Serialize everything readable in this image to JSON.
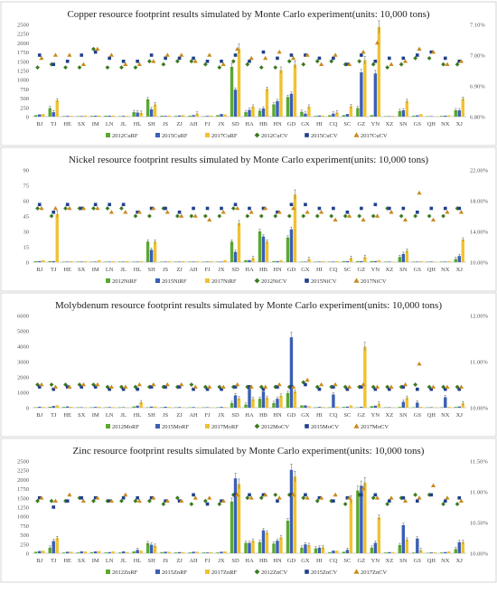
{
  "colors": {
    "2012RF": "#5aa832",
    "2015RF": "#3a5fb3",
    "2017RF": "#f0c231",
    "2012CV": "#3c7a1e",
    "2015CV": "#1f3f8a",
    "2017CV": "#c98a1e"
  },
  "provinces": [
    "BJ",
    "TJ",
    "HE",
    "SX",
    "IM",
    "LN",
    "JL",
    "HL",
    "SH",
    "JS",
    "ZJ",
    "AH",
    "FJ",
    "JX",
    "SD",
    "HA",
    "HB",
    "HN",
    "GD",
    "GX",
    "HI",
    "CQ",
    "SC",
    "GZ",
    "YN",
    "XZ",
    "SN",
    "GS",
    "QH",
    "NX",
    "XJ"
  ],
  "chart_data": [
    {
      "type": "bar",
      "title": "Copper resource footprint results simulated by Monte Carlo experiment(units: 10,000 tons)",
      "ylim": [
        0,
        2500
      ],
      "yticks": [
        0,
        250,
        500,
        750,
        1000,
        1250,
        1500,
        1750,
        2000,
        2250,
        2500
      ],
      "ylim_right": [
        6.8,
        7.1
      ],
      "yticks_right": [
        "6.80%",
        "6.90%",
        "7.00%",
        "7.10%"
      ],
      "legend": [
        "2012CuRF",
        "2015CuRF",
        "2017CuRF",
        "2012CuCV",
        "2015CuCV",
        "2017CuCV"
      ],
      "series": [
        {
          "name": "2012CuRF",
          "values": [
            40,
            230,
            15,
            10,
            20,
            25,
            10,
            120,
            470,
            25,
            20,
            25,
            10,
            40,
            1350,
            120,
            160,
            330,
            530,
            130,
            20,
            40,
            40,
            230,
            40,
            10,
            150,
            25,
            5,
            20,
            170
          ]
        },
        {
          "name": "2015CuRF",
          "values": [
            60,
            120,
            20,
            15,
            25,
            25,
            20,
            110,
            200,
            20,
            30,
            40,
            20,
            70,
            730,
            180,
            220,
            420,
            620,
            80,
            30,
            80,
            70,
            1200,
            1170,
            10,
            170,
            35,
            10,
            25,
            170
          ]
        },
        {
          "name": "2017CuRF",
          "values": [
            70,
            440,
            20,
            30,
            30,
            30,
            20,
            100,
            330,
            30,
            40,
            80,
            30,
            60,
            1840,
            270,
            750,
            1260,
            1410,
            270,
            30,
            110,
            280,
            1530,
            2430,
            20,
            420,
            70,
            10,
            35,
            480
          ]
        },
        {
          "name": "2012CuCV",
          "values": [
            6.96,
            6.97,
            6.96,
            6.96,
            7.02,
            6.96,
            6.96,
            6.96,
            6.98,
            6.97,
            6.98,
            6.98,
            6.97,
            6.96,
            6.98,
            6.97,
            6.96,
            6.96,
            6.98,
            6.97,
            6.98,
            6.98,
            6.97,
            6.98,
            6.97,
            6.96,
            6.97,
            6.99,
            6.99,
            6.97,
            6.97
          ]
        },
        {
          "name": "2015CuCV",
          "values": [
            7.0,
            6.97,
            6.98,
            7.0,
            7.01,
            6.99,
            6.98,
            6.98,
            7.0,
            6.99,
            6.99,
            6.99,
            6.98,
            6.98,
            7.0,
            6.98,
            7.01,
            6.99,
            7.0,
            7.0,
            6.99,
            6.99,
            6.97,
            7.0,
            6.98,
            6.99,
            6.99,
            7.0,
            7.01,
            6.99,
            6.98
          ]
        },
        {
          "name": "2017CuCV",
          "values": [
            6.99,
            7.0,
            7.0,
            6.97,
            7.02,
            7.0,
            6.97,
            6.97,
            6.98,
            7.0,
            7.0,
            6.98,
            7.0,
            6.97,
            7.02,
            6.99,
            6.99,
            7.01,
            6.99,
            7.0,
            6.97,
            7.0,
            6.97,
            7.01,
            7.04,
            6.97,
            6.98,
            7.02,
            7.01,
            6.97,
            6.98
          ]
        }
      ]
    },
    {
      "type": "bar",
      "title": "Nickel resource footprint results simulated by Monte Carlo experiment(units: 10,000 tons)",
      "ylim": [
        0,
        90
      ],
      "yticks": [
        0,
        15,
        30,
        45,
        60,
        75,
        90
      ],
      "ylim_right": [
        10,
        22
      ],
      "yticks_right": [
        "10.00%",
        "14.00%",
        "18.00%",
        "22.00%"
      ],
      "legend": [
        "2012NiRF",
        "2015NiRF",
        "2017NiRF",
        "2012NiCV",
        "2015NiCV",
        "2017NiCV"
      ],
      "series": [
        {
          "name": "2012NiRF",
          "values": [
            1,
            1,
            0.5,
            0.5,
            0.5,
            0.5,
            0.5,
            0.5,
            20,
            0.5,
            0.5,
            0.5,
            0.5,
            0.5,
            20,
            2,
            30,
            1,
            24,
            0.5,
            0.5,
            0.5,
            1,
            1,
            1,
            0.5,
            5,
            0.5,
            0.5,
            0.5,
            3
          ]
        },
        {
          "name": "2015NiRF",
          "values": [
            1,
            1,
            0.5,
            0.5,
            0.5,
            0.5,
            0.5,
            0.5,
            12,
            0.5,
            0.5,
            0.5,
            0.5,
            0.5,
            10,
            2,
            25,
            1,
            32,
            0.5,
            0.5,
            0.5,
            1,
            1,
            1,
            0.5,
            8,
            0.5,
            0.5,
            0.5,
            6
          ]
        },
        {
          "name": "2017NiRF",
          "values": [
            2,
            47,
            1,
            1,
            2,
            1,
            1,
            1,
            20,
            1,
            1,
            1,
            1,
            2,
            38,
            4,
            20,
            2,
            66,
            3,
            1,
            1,
            4,
            5,
            2,
            0.5,
            11,
            1,
            0.5,
            1,
            22
          ]
        },
        {
          "name": "2012NiCV",
          "values": [
            17,
            16,
            17,
            17,
            17,
            17,
            17,
            16,
            16,
            17,
            16,
            16,
            16,
            16,
            17,
            16,
            16,
            16,
            16,
            16,
            16,
            16,
            16,
            16,
            16,
            17,
            16,
            16,
            16,
            16,
            17
          ]
        },
        {
          "name": "2015NiCV",
          "values": [
            17.5,
            16.5,
            17.5,
            17,
            17.5,
            17.5,
            17.5,
            16.5,
            17,
            17,
            16.5,
            17,
            17,
            17,
            17.5,
            17,
            17,
            16.5,
            17.5,
            17.5,
            17,
            17,
            16.5,
            17,
            17.5,
            17,
            17,
            16.5,
            17,
            17,
            17
          ]
        },
        {
          "name": "2017NiCV",
          "values": [
            17,
            17,
            17,
            17,
            17,
            16.5,
            16.5,
            16.5,
            17,
            16.5,
            16,
            16,
            15.5,
            16.5,
            17,
            16.5,
            17,
            16.5,
            17,
            16.5,
            16.5,
            15.5,
            16,
            15.5,
            16,
            16.5,
            15.5,
            19,
            15.5,
            16.5,
            16.5
          ]
        }
      ]
    },
    {
      "type": "bar",
      "title": "Molybdenum resource footprint results simulated by Monte Carlo experiment(units: 10,000 tons)",
      "ylim": [
        0,
        6000
      ],
      "yticks": [
        0,
        1000,
        2000,
        3000,
        4000,
        5000,
        6000
      ],
      "ylim_right": [
        10,
        12
      ],
      "yticks_right": [
        "10.00%",
        "11.00%",
        "12.00%"
      ],
      "legend": [
        "2012MoRF",
        "2015MoRF",
        "2017MoRF",
        "2012MoCV",
        "2015MoCV",
        "2017MoCV"
      ],
      "series": [
        {
          "name": "2012MoRF",
          "values": [
            30,
            60,
            50,
            20,
            30,
            20,
            10,
            80,
            30,
            30,
            20,
            20,
            10,
            20,
            300,
            200,
            580,
            300,
            950,
            150,
            30,
            20,
            50,
            30,
            100,
            10,
            50,
            10,
            10,
            10,
            50
          ]
        },
        {
          "name": "2015MoRF",
          "values": [
            60,
            110,
            80,
            30,
            50,
            40,
            30,
            130,
            70,
            60,
            40,
            40,
            20,
            50,
            800,
            1340,
            1050,
            580,
            4580,
            150,
            50,
            860,
            70,
            60,
            130,
            20,
            380,
            330,
            10,
            680,
            80
          ]
        },
        {
          "name": "2017MoRF",
          "values": [
            50,
            160,
            60,
            30,
            60,
            40,
            30,
            350,
            80,
            50,
            30,
            30,
            20,
            40,
            600,
            560,
            640,
            780,
            1050,
            100,
            50,
            80,
            150,
            3970,
            250,
            30,
            640,
            60,
            10,
            60,
            280
          ]
        },
        {
          "name": "2012MoCV",
          "values": [
            10.5,
            10.5,
            10.5,
            10.5,
            10.5,
            10.45,
            10.45,
            10.45,
            10.45,
            10.45,
            10.45,
            10.5,
            10.45,
            10.45,
            10.45,
            10.45,
            10.45,
            10.45,
            10.45,
            10.55,
            10.45,
            10.45,
            10.45,
            10.45,
            10.45,
            10.45,
            10.45,
            10.5,
            10.45,
            10.45,
            10.45
          ]
        },
        {
          "name": "2015MoCV",
          "values": [
            10.45,
            10.4,
            10.45,
            10.45,
            10.45,
            10.4,
            10.4,
            10.4,
            10.45,
            10.45,
            10.45,
            10.4,
            10.4,
            10.4,
            10.45,
            10.45,
            10.4,
            10.45,
            10.45,
            10.5,
            10.4,
            10.45,
            10.4,
            10.45,
            10.4,
            10.4,
            10.45,
            10.4,
            10.4,
            10.4,
            10.4
          ]
        },
        {
          "name": "2017MoCV",
          "values": [
            10.5,
            10.45,
            10.45,
            10.5,
            10.5,
            10.45,
            10.45,
            10.5,
            10.5,
            10.5,
            10.5,
            10.45,
            10.45,
            10.45,
            10.5,
            10.45,
            10.45,
            10.5,
            10.45,
            10.6,
            10.5,
            10.5,
            10.45,
            10.5,
            10.45,
            10.45,
            10.5,
            10.95,
            10.45,
            10.45,
            10.45
          ]
        }
      ]
    },
    {
      "type": "bar",
      "title": "Zinc resource footprint results simulated by Monte Carlo experiment(units: 10,000 tons)",
      "ylim": [
        0,
        2500
      ],
      "yticks": [
        0,
        250,
        500,
        750,
        1000,
        1250,
        1500,
        1750,
        2000,
        2250,
        2500
      ],
      "ylim_right": [
        10,
        11.5
      ],
      "yticks_right": [
        "10.00%",
        "10.50%",
        "11.00%",
        "11.50%"
      ],
      "legend": [
        "2012ZnRF",
        "2015ZnRF",
        "2017ZnRF",
        "2012ZnCV",
        "2015ZnCV",
        "2017ZnCV"
      ],
      "series": [
        {
          "name": "2012ZnRF",
          "values": [
            40,
            150,
            20,
            20,
            30,
            20,
            20,
            50,
            270,
            30,
            20,
            20,
            20,
            20,
            1400,
            280,
            300,
            260,
            880,
            150,
            130,
            30,
            40,
            1700,
            150,
            20,
            220,
            20,
            10,
            20,
            110
          ]
        },
        {
          "name": "2015ZnRF",
          "values": [
            60,
            330,
            40,
            50,
            50,
            30,
            50,
            90,
            230,
            40,
            30,
            40,
            20,
            40,
            2030,
            280,
            620,
            340,
            2260,
            240,
            150,
            70,
            90,
            1830,
            280,
            30,
            760,
            400,
            20,
            30,
            300
          ]
        },
        {
          "name": "2017ZnRF",
          "values": [
            70,
            410,
            40,
            50,
            60,
            50,
            30,
            70,
            200,
            40,
            30,
            40,
            30,
            50,
            1880,
            340,
            560,
            430,
            2080,
            220,
            160,
            70,
            1460,
            1920,
            970,
            30,
            370,
            80,
            30,
            50,
            300
          ]
        },
        {
          "name": "2012ZnCV",
          "values": [
            10.85,
            10.85,
            10.85,
            10.9,
            10.85,
            10.85,
            10.85,
            10.85,
            10.85,
            10.8,
            10.9,
            10.8,
            10.85,
            10.8,
            10.95,
            10.9,
            10.9,
            10.95,
            10.95,
            10.9,
            10.85,
            10.85,
            10.8,
            10.95,
            10.9,
            10.8,
            10.9,
            10.95,
            10.95,
            10.8,
            10.8
          ]
        },
        {
          "name": "2015ZnCV",
          "values": [
            10.9,
            10.75,
            10.85,
            10.9,
            10.9,
            10.85,
            10.9,
            10.9,
            10.9,
            10.85,
            10.85,
            10.95,
            10.8,
            10.85,
            10.95,
            10.95,
            10.95,
            10.85,
            10.95,
            10.95,
            10.9,
            10.85,
            10.9,
            10.95,
            10.95,
            10.85,
            10.9,
            10.85,
            10.95,
            10.85,
            10.9
          ]
        },
        {
          "name": "2017ZnCV",
          "values": [
            10.9,
            10.85,
            10.95,
            10.85,
            10.9,
            10.85,
            10.95,
            10.85,
            10.9,
            10.85,
            10.85,
            10.9,
            10.9,
            10.85,
            10.95,
            10.9,
            10.95,
            10.9,
            10.95,
            10.9,
            10.9,
            10.95,
            10.9,
            11.05,
            10.9,
            10.9,
            10.85,
            10.9,
            11.1,
            10.9,
            10.85
          ]
        }
      ]
    }
  ]
}
